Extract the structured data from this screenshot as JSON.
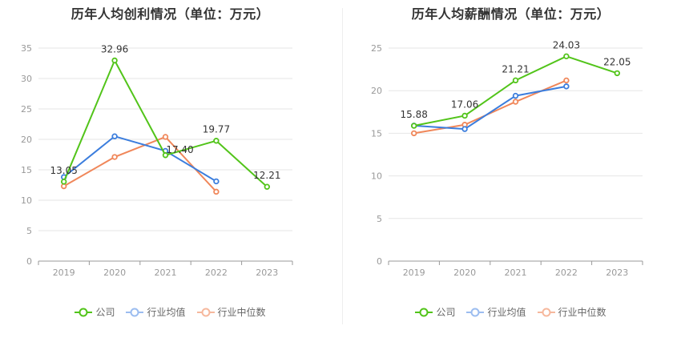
{
  "legend": {
    "company": "公司",
    "industry_avg": "行业均值",
    "industry_median": "行业中位数"
  },
  "colors": {
    "company": "#52c41a",
    "industry_avg": "#3b7ddd",
    "industry_median": "#f0875a"
  },
  "chart_data": [
    {
      "type": "line",
      "title": "历年人均创利情况（单位：万元）",
      "categories": [
        "2019",
        "2020",
        "2021",
        "2022",
        "2023"
      ],
      "ylim": [
        0,
        35
      ],
      "yticks": [
        0,
        5,
        10,
        15,
        20,
        25,
        30,
        35
      ],
      "series": [
        {
          "name": "公司",
          "key": "company",
          "values": [
            13.05,
            32.96,
            17.4,
            19.77,
            12.21
          ],
          "labels": [
            "13.05",
            "32.96",
            "17.40",
            "19.77",
            "12.21"
          ]
        },
        {
          "name": "行业均值",
          "key": "industry_avg",
          "values": [
            13.8,
            20.5,
            18.1,
            13.1,
            null
          ]
        },
        {
          "name": "行业中位数",
          "key": "industry_median",
          "values": [
            12.3,
            17.1,
            20.4,
            11.4,
            null
          ]
        }
      ],
      "grid": true,
      "legend_position": "bottom"
    },
    {
      "type": "line",
      "title": "历年人均薪酬情况（单位：万元）",
      "categories": [
        "2019",
        "2020",
        "2021",
        "2022",
        "2023"
      ],
      "ylim": [
        0,
        25
      ],
      "yticks": [
        0,
        5,
        10,
        15,
        20,
        25
      ],
      "series": [
        {
          "name": "公司",
          "key": "company",
          "values": [
            15.88,
            17.06,
            21.21,
            24.03,
            22.05
          ],
          "labels": [
            "15.88",
            "17.06",
            "21.21",
            "24.03",
            "22.05"
          ]
        },
        {
          "name": "行业均值",
          "key": "industry_avg",
          "values": [
            15.9,
            15.5,
            19.4,
            20.5,
            null
          ]
        },
        {
          "name": "行业中位数",
          "key": "industry_median",
          "values": [
            15.0,
            16.0,
            18.7,
            21.2,
            null
          ]
        }
      ],
      "grid": true,
      "legend_position": "bottom"
    }
  ]
}
